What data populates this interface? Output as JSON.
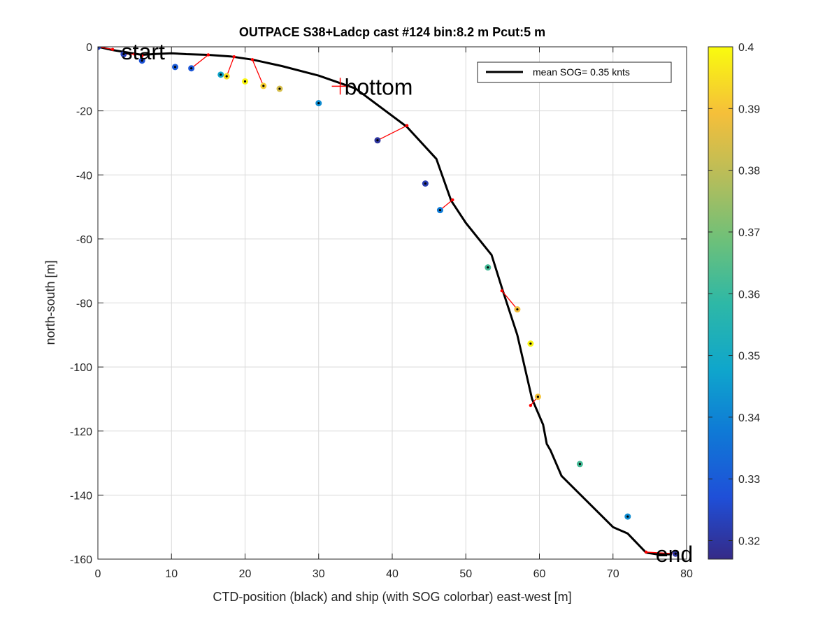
{
  "chart_data": {
    "type": "scatter",
    "title": "OUTPACE S38+Ladcp cast #124 bin:8.2 m  Pcut:5 m",
    "xlabel": "CTD-position (black) and ship (with SOG colorbar) east-west [m]",
    "ylabel": "north-south [m]",
    "xlim": [
      0,
      80
    ],
    "ylim": [
      -160,
      0
    ],
    "xticks": [
      0,
      10,
      20,
      30,
      40,
      50,
      60,
      70,
      80
    ],
    "yticks": [
      0,
      -20,
      -40,
      -60,
      -80,
      -100,
      -120,
      -140,
      -160
    ],
    "grid": true,
    "legend": {
      "entry": "mean SOG=  0.35 knts",
      "placement": "top-right"
    },
    "colorbar": {
      "min": 0.317,
      "max": 0.4,
      "ticks": [
        "0.32",
        "0.33",
        "0.34",
        "0.35",
        "0.36",
        "0.37",
        "0.38",
        "0.39",
        "0.4"
      ],
      "tick_values": [
        0.32,
        0.33,
        0.34,
        0.35,
        0.36,
        0.37,
        0.38,
        0.39,
        0.4
      ]
    },
    "ctd_track": {
      "name": "mean SOG=  0.35 knts",
      "color": "#000000",
      "x": [
        0,
        2,
        6,
        8,
        10,
        12,
        15,
        18,
        21,
        25,
        30,
        35,
        42,
        46,
        48,
        50,
        53.5,
        55,
        57,
        59,
        60.5,
        61,
        61.5,
        63,
        70,
        72,
        74.5,
        76,
        78
      ],
      "y": [
        0,
        -1,
        -2.5,
        -2.2,
        -2,
        -2.3,
        -2.5,
        -3,
        -4,
        -6,
        -9,
        -13,
        -25,
        -35,
        -48,
        -55,
        -65,
        -76,
        -90,
        -110,
        -118,
        -124,
        -126,
        -134,
        -150,
        -152,
        -158,
        -158.5,
        -158.5
      ]
    },
    "ship_positions": {
      "x": [
        0,
        3.5,
        6,
        10.5,
        12.7,
        16.7,
        17.5,
        20,
        22.5,
        24.7,
        30,
        38,
        44.5,
        46.5,
        53,
        57,
        58.8,
        59.8,
        65.5,
        72,
        78.5
      ],
      "y": [
        0,
        -2.3,
        -4.3,
        -6.3,
        -6.7,
        -8.7,
        -9.2,
        -10.8,
        -12.2,
        -13.1,
        -17.6,
        -29.2,
        -42.7,
        -51,
        -68.9,
        -82,
        -92.7,
        -109.3,
        -130.3,
        -146.7,
        -158.3
      ],
      "sog": [
        0.323,
        0.323,
        0.328,
        0.33,
        0.329,
        0.348,
        0.395,
        0.399,
        0.392,
        0.384,
        0.342,
        0.32,
        0.322,
        0.338,
        0.362,
        0.389,
        0.399,
        0.39,
        0.362,
        0.342,
        0.32
      ]
    },
    "links": [
      {
        "ctd": [
          2,
          -0.8
        ],
        "ship": [
          0,
          0
        ]
      },
      {
        "ctd": [
          5,
          -2.3
        ],
        "ship": [
          3.5,
          -2.3
        ]
      },
      {
        "ctd": [
          6,
          -2.8
        ],
        "ship": [
          6,
          -4.3
        ]
      },
      {
        "ctd": [
          15,
          -2.5
        ],
        "ship": [
          12.7,
          -6.7
        ]
      },
      {
        "ctd": [
          18.5,
          -3.1
        ],
        "ship": [
          17.5,
          -9.2
        ]
      },
      {
        "ctd": [
          21,
          -4
        ],
        "ship": [
          22.5,
          -12.2
        ]
      },
      {
        "ctd": [
          42,
          -24.6
        ],
        "ship": [
          38,
          -29.2
        ]
      },
      {
        "ctd": [
          48.2,
          -47.8
        ],
        "ship": [
          46.5,
          -51
        ]
      },
      {
        "ctd": [
          54.9,
          -76.2
        ],
        "ship": [
          57,
          -82
        ]
      },
      {
        "ctd": [
          58.8,
          -112
        ],
        "ship": [
          59.8,
          -109.3
        ]
      },
      {
        "ctd": [
          74.5,
          -157.8
        ],
        "ship": [
          78.5,
          -158.3
        ]
      }
    ],
    "annotations": [
      {
        "text": "start",
        "x": 3.2,
        "y": -1.3
      },
      {
        "text": "bottom",
        "x": 33.5,
        "y": -12.3,
        "marker": "+"
      },
      {
        "text": "end",
        "x": 75.8,
        "y": -158.3
      }
    ]
  }
}
